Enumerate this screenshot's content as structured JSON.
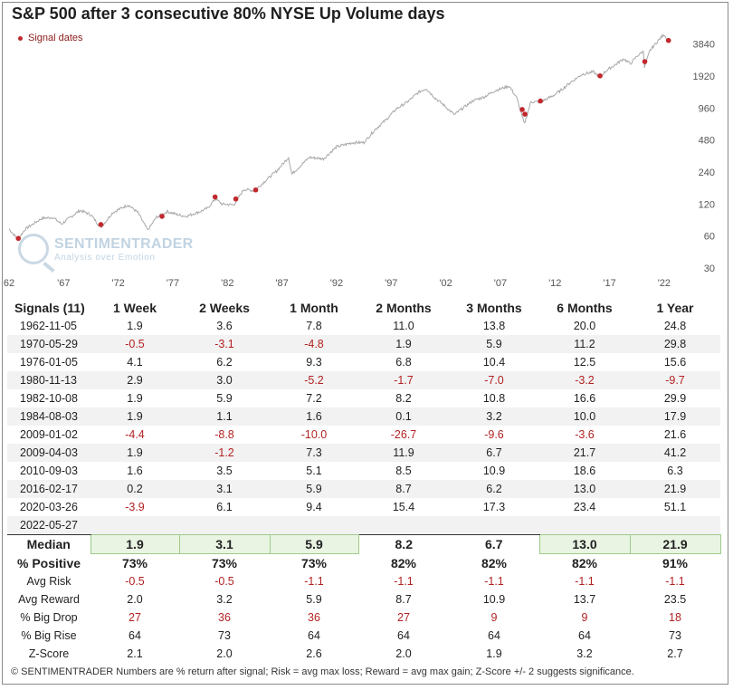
{
  "title": "S&P 500 after 3 consecutive 80% NYSE Up Volume days",
  "legend_label": "Signal dates",
  "watermark": {
    "name": "SENTIMENTRADER",
    "tagline": "Analysis over Emotion"
  },
  "chart_data": {
    "type": "line",
    "series": [
      {
        "values_note_free": true,
        "x": [
          1962.0,
          1962.8,
          1963.5,
          1965.0,
          1966.0,
          1966.8,
          1968.5,
          1969.5,
          1970.4,
          1971.5,
          1972.9,
          1973.8,
          1974.7,
          1975.5,
          1976.5,
          1977.5,
          1978.2,
          1979.5,
          1980.2,
          1980.9,
          1981.5,
          1982.6,
          1983.5,
          1984.5,
          1985.5,
          1986.5,
          1987.6,
          1987.9,
          1989.5,
          1990.8,
          1992.0,
          1993.5,
          1994.5,
          1995.5,
          1996.5,
          1997.5,
          1998.5,
          1999.5,
          2000.2,
          2001.0,
          2001.7,
          2002.8,
          2003.2,
          2004.5,
          2005.5,
          2006.5,
          2007.8,
          2008.5,
          2009.2,
          2009.8,
          2010.7,
          2011.8,
          2012.5,
          2013.5,
          2014.5,
          2015.5,
          2016.1,
          2016.8,
          2017.5,
          2018.3,
          2018.9,
          2019.5,
          2020.1,
          2020.2,
          2020.7,
          2021.5,
          2021.99,
          2022.4
        ],
        "y": [
          70,
          56,
          70,
          88,
          90,
          78,
          105,
          95,
          72,
          100,
          118,
          100,
          68,
          90,
          102,
          95,
          92,
          102,
          110,
          135,
          120,
          118,
          165,
          160,
          200,
          245,
          330,
          230,
          330,
          320,
          415,
          455,
          455,
          600,
          740,
          950,
          1100,
          1350,
          1470,
          1200,
          1050,
          830,
          900,
          1130,
          1220,
          1400,
          1550,
          1200,
          680,
          1100,
          1100,
          1250,
          1400,
          1700,
          2000,
          2100,
          1900,
          2200,
          2450,
          2800,
          2500,
          2950,
          3300,
          2300,
          3350,
          4200,
          4750,
          4100
        ]
      }
    ],
    "signals": [
      {
        "x": 1962.85,
        "y": 57
      },
      {
        "x": 1970.41,
        "y": 77
      },
      {
        "x": 1976.01,
        "y": 92
      },
      {
        "x": 1980.87,
        "y": 140
      },
      {
        "x": 1982.77,
        "y": 134
      },
      {
        "x": 1984.59,
        "y": 163
      },
      {
        "x": 2009.0,
        "y": 931
      },
      {
        "x": 2009.25,
        "y": 842
      },
      {
        "x": 2010.67,
        "y": 1119
      },
      {
        "x": 2016.13,
        "y": 1929
      },
      {
        "x": 2020.23,
        "y": 2630
      },
      {
        "x": 2022.4,
        "y": 4158
      }
    ],
    "x_ticks": [
      "62",
      "'67",
      "'72",
      "'77",
      "'82",
      "'87",
      "'92",
      "'97",
      "'02",
      "'07",
      "'12",
      "'17",
      "'22"
    ],
    "y_ticks": [
      "3840",
      "1920",
      "960",
      "480",
      "240",
      "120",
      "60",
      "30"
    ],
    "y_tick_values": [
      3840,
      1920,
      960,
      480,
      240,
      120,
      60,
      30
    ],
    "x_tick_values": [
      1962,
      1967,
      1972,
      1977,
      1982,
      1987,
      1992,
      1997,
      2002,
      2007,
      2012,
      2017,
      2022
    ],
    "xlim": [
      1962,
      2023.5
    ],
    "ylim": [
      30,
      6000
    ],
    "y_scale": "log",
    "colors": {
      "line": "#a8a8a8",
      "signal": "#c0282d"
    }
  },
  "table": {
    "headers": [
      "Signals (11)",
      "1 Week",
      "2 Weeks",
      "1 Month",
      "2 Months",
      "3 Months",
      "6 Months",
      "1 Year"
    ],
    "rows": [
      {
        "date": "1962-11-05",
        "values": [
          "1.9",
          "3.6",
          "7.8",
          "11.0",
          "13.8",
          "20.0",
          "24.8"
        ]
      },
      {
        "date": "1970-05-29",
        "values": [
          "-0.5",
          "-3.1",
          "-4.8",
          "1.9",
          "5.9",
          "11.2",
          "29.8"
        ]
      },
      {
        "date": "1976-01-05",
        "values": [
          "4.1",
          "6.2",
          "9.3",
          "6.8",
          "10.4",
          "12.5",
          "15.6"
        ]
      },
      {
        "date": "1980-11-13",
        "values": [
          "2.9",
          "3.0",
          "-5.2",
          "-1.7",
          "-7.0",
          "-3.2",
          "-9.7"
        ]
      },
      {
        "date": "1982-10-08",
        "values": [
          "1.9",
          "5.9",
          "7.2",
          "8.2",
          "10.8",
          "16.6",
          "29.9"
        ]
      },
      {
        "date": "1984-08-03",
        "values": [
          "1.9",
          "1.1",
          "1.6",
          "0.1",
          "3.2",
          "10.0",
          "17.9"
        ]
      },
      {
        "date": "2009-01-02",
        "values": [
          "-4.4",
          "-8.8",
          "-10.0",
          "-26.7",
          "-9.6",
          "-3.6",
          "21.6"
        ]
      },
      {
        "date": "2009-04-03",
        "values": [
          "1.9",
          "-1.2",
          "7.3",
          "11.9",
          "6.7",
          "21.7",
          "41.2"
        ]
      },
      {
        "date": "2010-09-03",
        "values": [
          "1.6",
          "3.5",
          "5.1",
          "8.5",
          "10.9",
          "18.6",
          "6.3"
        ]
      },
      {
        "date": "2016-02-17",
        "values": [
          "0.2",
          "3.1",
          "5.9",
          "8.7",
          "6.2",
          "13.0",
          "21.9"
        ]
      },
      {
        "date": "2020-03-26",
        "values": [
          "-3.9",
          "6.1",
          "9.4",
          "15.4",
          "17.3",
          "23.4",
          "51.1"
        ]
      },
      {
        "date": "2022-05-27",
        "values": [
          "",
          "",
          "",
          "",
          "",
          "",
          ""
        ]
      }
    ],
    "median": {
      "label": "Median",
      "values": [
        "1.9",
        "3.1",
        "5.9",
        "8.2",
        "6.7",
        "13.0",
        "21.9"
      ],
      "highlight": [
        true,
        true,
        true,
        false,
        false,
        true,
        true
      ]
    },
    "positive": {
      "label": "% Positive",
      "values": [
        "73%",
        "73%",
        "73%",
        "82%",
        "82%",
        "82%",
        "91%"
      ]
    },
    "stats": [
      {
        "label": "Avg Risk",
        "values": [
          "-0.5",
          "-0.5",
          "-1.1",
          "-1.1",
          "-1.1",
          "-1.1",
          "-1.1"
        ],
        "color": "red"
      },
      {
        "label": "Avg Reward",
        "values": [
          "2.0",
          "3.2",
          "5.9",
          "8.7",
          "10.9",
          "13.7",
          "23.5"
        ],
        "color": "black"
      },
      {
        "label": "% Big Drop",
        "values": [
          "27",
          "36",
          "36",
          "27",
          "9",
          "9",
          "18"
        ],
        "color": "red"
      },
      {
        "label": "% Big Rise",
        "values": [
          "64",
          "73",
          "64",
          "64",
          "64",
          "64",
          "73"
        ],
        "color": "black"
      },
      {
        "label": "Z-Score",
        "values": [
          "2.1",
          "2.0",
          "2.6",
          "2.0",
          "1.9",
          "3.2",
          "2.7"
        ],
        "color": "black"
      }
    ]
  },
  "footer": "© SENTIMENTRADER  Numbers are % return after signal; Risk = avg max loss; Reward = avg max gain; Z-Score +/- 2 suggests significance."
}
